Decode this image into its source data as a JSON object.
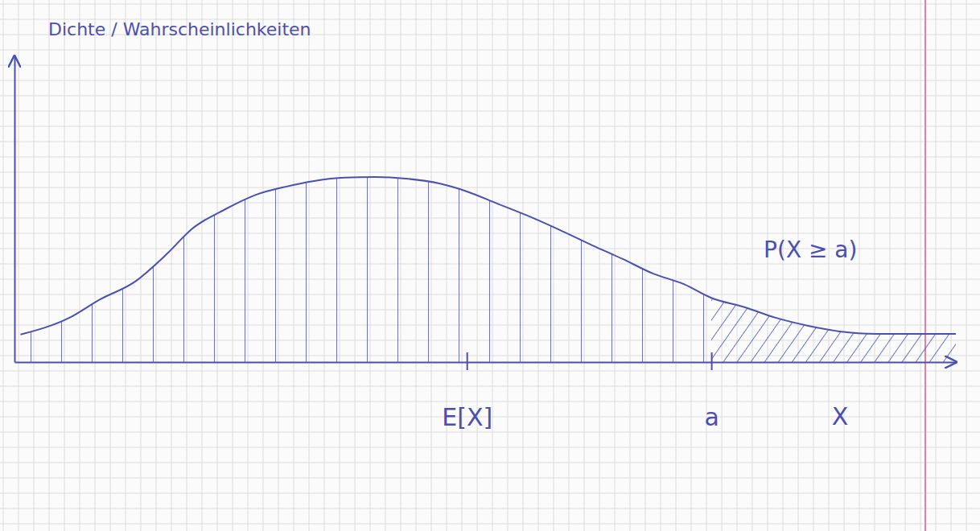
{
  "chart_data": {
    "type": "area",
    "x_label": "X",
    "y_label": "Dichte / Wahrscheinlichkeiten",
    "x": [
      0.2,
      1.8,
      2.8,
      3.9,
      5.0,
      5.8,
      6.9,
      7.9,
      8.9,
      9.8,
      10.8,
      11.8,
      12.8,
      13.9,
      14.8,
      15.8,
      16.9,
      17.8,
      18.9,
      19.9,
      20.9,
      21.9,
      22.8,
      23.9,
      24.9,
      26.0,
      27.0,
      28.2,
      29.5,
      30.8
    ],
    "values": [
      0.9,
      1.45,
      2.05,
      2.6,
      3.55,
      4.35,
      5.0,
      5.47,
      5.74,
      5.92,
      6.03,
      6.05,
      6.0,
      5.84,
      5.58,
      5.18,
      4.74,
      4.34,
      3.82,
      3.37,
      2.89,
      2.55,
      2.1,
      1.79,
      1.45,
      1.18,
      1.0,
      0.92,
      0.92,
      0.92
    ],
    "color": "#4b50b0",
    "xlim": [
      0,
      30.8
    ],
    "ylim": [
      0,
      10
    ],
    "xticks": [
      {
        "value": 14.8,
        "label": "E[X]"
      },
      {
        "value": 22.8,
        "label": "a"
      }
    ],
    "yticks": [],
    "tick_labels": "x",
    "grid": false,
    "shaded_region": {
      "label": "P(X ≥ a)",
      "from": 22.8,
      "to": 30.8
    }
  }
}
